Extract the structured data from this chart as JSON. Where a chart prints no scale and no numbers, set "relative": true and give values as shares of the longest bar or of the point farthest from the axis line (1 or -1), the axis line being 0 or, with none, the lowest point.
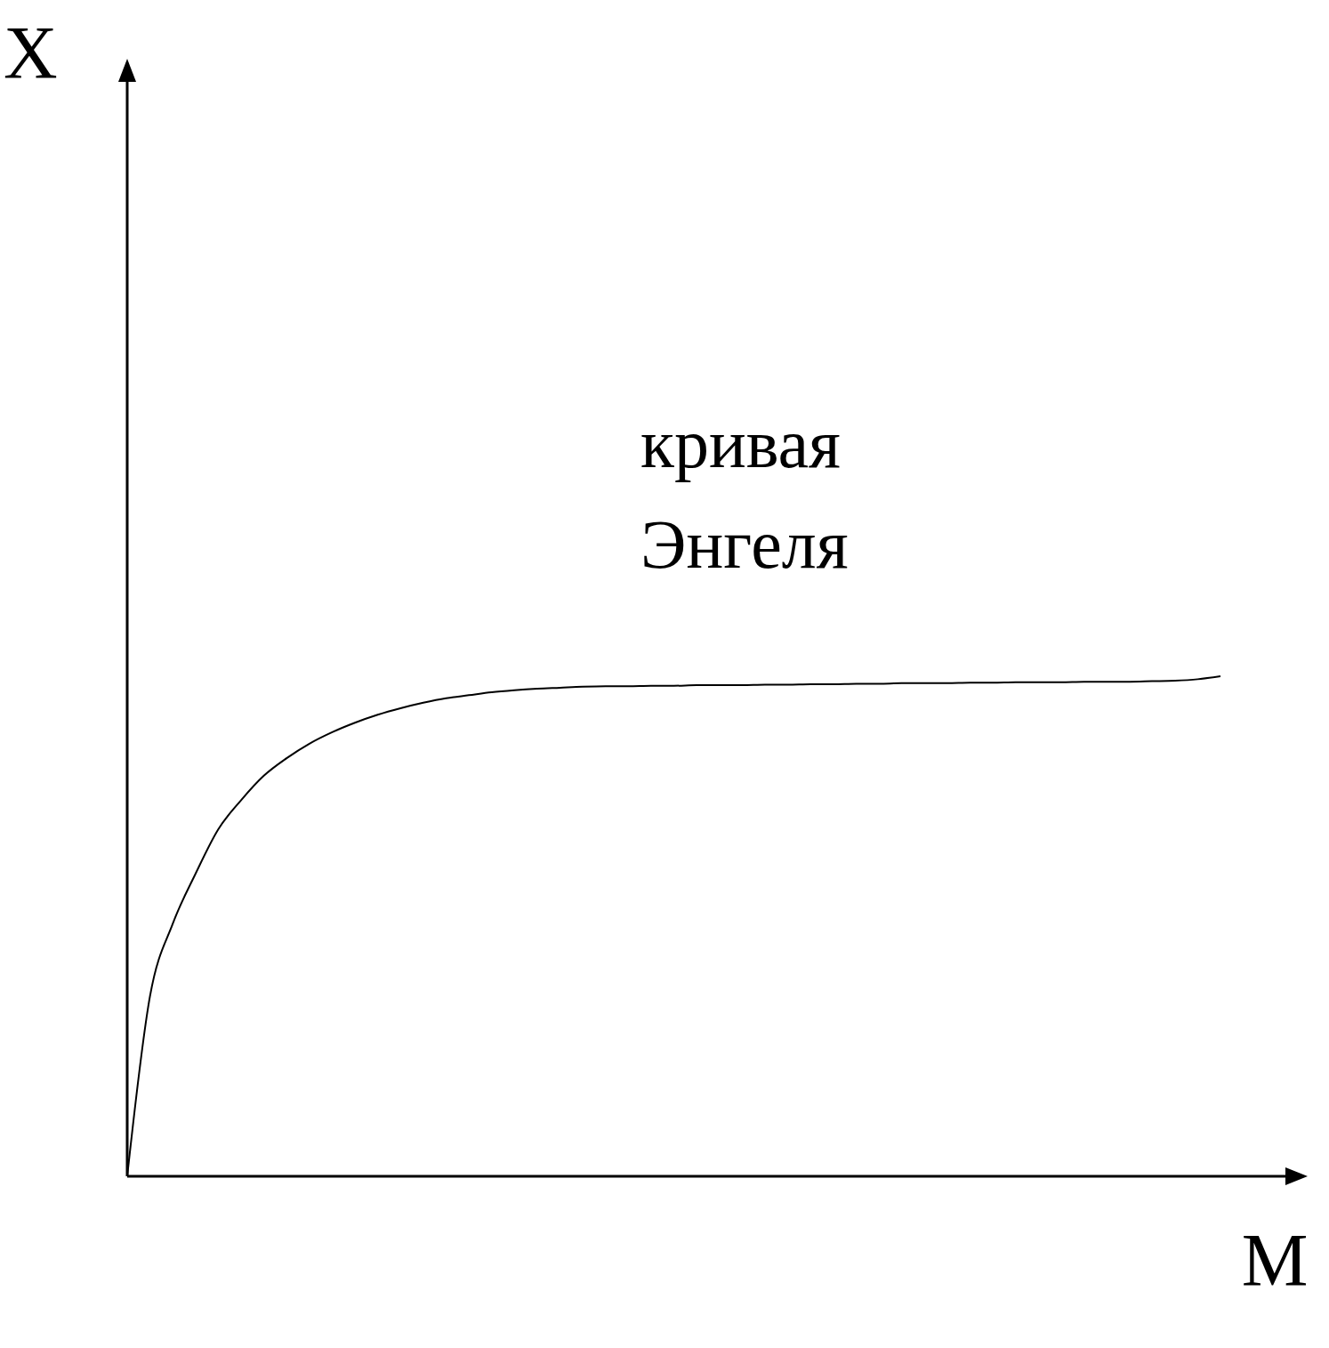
{
  "chart_data": {
    "type": "line",
    "relative": true,
    "xlabel": "M",
    "annotations": [
      "X",
      "кривая\nЭнгеля"
    ],
    "categories": [
      null,
      null,
      null,
      null,
      null,
      null,
      null,
      null,
      null,
      null,
      null,
      null,
      null,
      null,
      null,
      null,
      null,
      null,
      null,
      null,
      null,
      null,
      null,
      null,
      null,
      null,
      null,
      null,
      null,
      null,
      null,
      null,
      null,
      null,
      null,
      null,
      null,
      null,
      null,
      null,
      null,
      null,
      null,
      null,
      null,
      null,
      null,
      null,
      null
    ],
    "series": [
      {
        "color": "#000000",
        "values": [
          0,
          0.36,
          0.505,
          0.605,
          0.694,
          0.752,
          0.801,
          0.836,
          0.865,
          0.888,
          0.907,
          0.923,
          0.936,
          0.947,
          0.956,
          0.962,
          0.968,
          0.972,
          0.975,
          0.977,
          0.979,
          0.98,
          0.98,
          0.981,
          0.981,
          0.982,
          0.982,
          0.982,
          0.983,
          0.983,
          0.984,
          0.984,
          0.985,
          0.985,
          0.986,
          0.986,
          0.986,
          0.987,
          0.987,
          0.988,
          0.988,
          0.988,
          0.989,
          0.989,
          0.989,
          0.99,
          0.991,
          0.994,
          1
        ]
      }
    ]
  }
}
